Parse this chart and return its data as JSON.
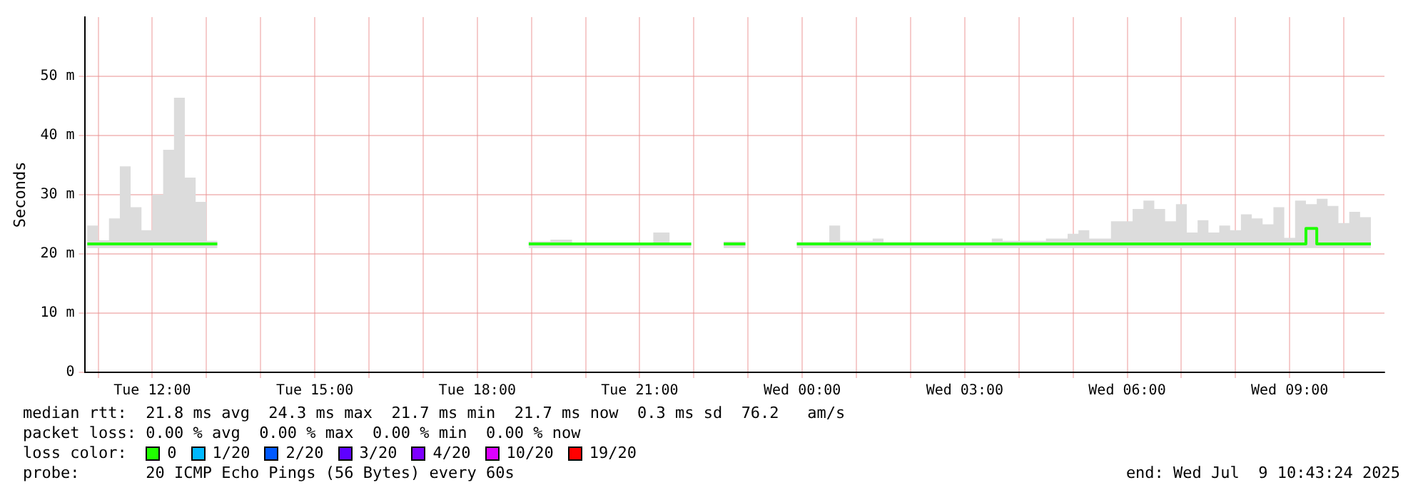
{
  "chart_data": {
    "type": "step",
    "ylabel": "Seconds",
    "legend_title": "loss color:",
    "legend": "bottom",
    "grid": true,
    "marker": "none",
    "line_style": "solid",
    "xlim": [
      "2025-07-08T10:45",
      "2025-07-09T10:45"
    ],
    "xticks": [
      {
        "value": "2025-07-08T11:00",
        "label": null
      },
      {
        "value": "2025-07-08T12:00",
        "label": "Tue 12:00"
      },
      {
        "value": "2025-07-08T13:00",
        "label": null
      },
      {
        "value": "2025-07-08T14:00",
        "label": null
      },
      {
        "value": "2025-07-08T15:00",
        "label": "Tue 15:00"
      },
      {
        "value": "2025-07-08T16:00",
        "label": null
      },
      {
        "value": "2025-07-08T17:00",
        "label": null
      },
      {
        "value": "2025-07-08T18:00",
        "label": "Tue 18:00"
      },
      {
        "value": "2025-07-08T19:00",
        "label": null
      },
      {
        "value": "2025-07-08T20:00",
        "label": null
      },
      {
        "value": "2025-07-08T21:00",
        "label": "Tue 21:00"
      },
      {
        "value": "2025-07-08T22:00",
        "label": null
      },
      {
        "value": "2025-07-08T23:00",
        "label": null
      },
      {
        "value": "2025-07-09T00:00",
        "label": "Wed 00:00"
      },
      {
        "value": "2025-07-09T01:00",
        "label": null
      },
      {
        "value": "2025-07-09T02:00",
        "label": null
      },
      {
        "value": "2025-07-09T03:00",
        "label": "Wed 03:00"
      },
      {
        "value": "2025-07-09T04:00",
        "label": null
      },
      {
        "value": "2025-07-09T05:00",
        "label": null
      },
      {
        "value": "2025-07-09T06:00",
        "label": "Wed 06:00"
      },
      {
        "value": "2025-07-09T07:00",
        "label": null
      },
      {
        "value": "2025-07-09T08:00",
        "label": null
      },
      {
        "value": "2025-07-09T09:00",
        "label": "Wed 09:00"
      },
      {
        "value": "2025-07-09T10:00",
        "label": null
      }
    ],
    "ylim": [
      0,
      60
    ],
    "yticks": [
      0,
      {
        "value": 10,
        "label": "10 m"
      },
      {
        "value": 20,
        "label": "20 m"
      },
      {
        "value": 30,
        "label": "30 m"
      },
      {
        "value": 40,
        "label": "40 m"
      },
      {
        "value": 50,
        "label": "50 m"
      }
    ],
    "x": [
      "2025-07-08T10:48",
      "2025-07-08T11:00",
      "2025-07-08T11:12",
      "2025-07-08T11:24",
      "2025-07-08T11:36",
      "2025-07-08T11:48",
      "2025-07-08T12:00",
      "2025-07-08T12:12",
      "2025-07-08T12:24",
      "2025-07-08T12:36",
      "2025-07-08T12:48",
      "2025-07-08T13:00",
      "2025-07-08T13:12",
      "2025-07-08T13:18",
      "2025-07-08T18:57",
      "2025-07-08T19:21",
      "2025-07-08T19:45",
      "2025-07-08T21:15",
      "2025-07-08T21:33",
      "2025-07-08T21:57",
      "2025-07-08T22:12",
      "2025-07-08T22:33",
      "2025-07-08T22:57",
      "2025-07-08T23:18",
      "2025-07-08T23:54",
      "2025-07-09T00:30",
      "2025-07-09T00:42",
      "2025-07-09T01:18",
      "2025-07-09T01:30",
      "2025-07-09T03:30",
      "2025-07-09T03:42",
      "2025-07-09T04:30",
      "2025-07-09T04:42",
      "2025-07-09T04:54",
      "2025-07-09T05:06",
      "2025-07-09T05:18",
      "2025-07-09T05:30",
      "2025-07-09T05:42",
      "2025-07-09T05:54",
      "2025-07-09T06:06",
      "2025-07-09T06:18",
      "2025-07-09T06:30",
      "2025-07-09T06:42",
      "2025-07-09T06:54",
      "2025-07-09T07:06",
      "2025-07-09T07:18",
      "2025-07-09T07:30",
      "2025-07-09T07:42",
      "2025-07-09T07:54",
      "2025-07-09T08:06",
      "2025-07-09T08:18",
      "2025-07-09T08:30",
      "2025-07-09T08:42",
      "2025-07-09T08:54",
      "2025-07-09T09:06",
      "2025-07-09T09:18",
      "2025-07-09T09:30",
      "2025-07-09T09:42",
      "2025-07-09T09:54",
      "2025-07-09T10:06",
      "2025-07-09T10:18",
      "2025-07-09T10:30"
    ],
    "series": [
      {
        "name": "0",
        "color": "#20ff00",
        "values": [
          21.7,
          21.7,
          21.7,
          21.7,
          21.7,
          21.7,
          21.7,
          21.7,
          21.7,
          21.7,
          21.7,
          21.7,
          21.7,
          null,
          21.7,
          21.7,
          21.7,
          21.7,
          21.7,
          21.7,
          null,
          21.7,
          21.7,
          null,
          21.7,
          21.7,
          21.7,
          21.7,
          21.7,
          21.7,
          21.7,
          21.7,
          21.7,
          21.7,
          21.7,
          21.7,
          21.7,
          21.7,
          21.7,
          21.7,
          21.7,
          21.7,
          21.7,
          21.7,
          21.7,
          21.7,
          21.7,
          21.7,
          21.7,
          21.7,
          21.7,
          21.7,
          21.7,
          21.7,
          21.7,
          21.7,
          24.3,
          21.7,
          21.7,
          21.7,
          21.7,
          21.7
        ],
        "lower": [
          21.0,
          21.0,
          21.0,
          21.0,
          21.0,
          21.0,
          21.0,
          21.0,
          21.0,
          21.0,
          21.0,
          21.0,
          21.0,
          null,
          21.0,
          21.0,
          21.0,
          21.0,
          21.0,
          21.0,
          null,
          21.0,
          21.0,
          null,
          21.0,
          21.0,
          21.0,
          21.0,
          21.0,
          21.0,
          21.0,
          21.0,
          21.0,
          21.0,
          21.0,
          21.0,
          21.0,
          21.0,
          21.0,
          21.0,
          21.0,
          21.0,
          21.0,
          21.0,
          21.0,
          21.0,
          21.0,
          21.0,
          21.0,
          21.0,
          21.0,
          21.0,
          21.0,
          21.0,
          21.0,
          21.0,
          21.0,
          21.0,
          21.0,
          21.0,
          21.0,
          21.0
        ],
        "upper": [
          24.8,
          22.3,
          26,
          34.8,
          27.9,
          24,
          30,
          37.6,
          46.4,
          32.9,
          28.8,
          22.2,
          22.2,
          null,
          22.1,
          22.4,
          21.9,
          23.6,
          21.9,
          21.9,
          null,
          22.1,
          22.1,
          null,
          22,
          24.8,
          22.2,
          22.6,
          22,
          22.6,
          22.2,
          22.6,
          22.6,
          23.4,
          24,
          22.6,
          22.6,
          25.5,
          25.5,
          27.6,
          29,
          27.6,
          25.5,
          28.4,
          23.6,
          25.7,
          23.6,
          24.8,
          24,
          26.7,
          26,
          25,
          27.9,
          22.7,
          29,
          28.4,
          29.3,
          28.1,
          25.2,
          27.1,
          26.2,
          26.2
        ]
      },
      {
        "name": "1/20",
        "color": "#00b8ff",
        "values": [
          null,
          null,
          null,
          null,
          null,
          null,
          null,
          null,
          null,
          null,
          null,
          null,
          null,
          null,
          null,
          null,
          null,
          null,
          null,
          null,
          null,
          null,
          null,
          null,
          null,
          null,
          null,
          null,
          null,
          null,
          null,
          null,
          null,
          null,
          null,
          null,
          null,
          null,
          null,
          null,
          null,
          null,
          null,
          null,
          null,
          null,
          null,
          null,
          null,
          null,
          null,
          null,
          null,
          null,
          null,
          null,
          null,
          null,
          null,
          null,
          null,
          null
        ]
      },
      {
        "name": "2/20",
        "color": "#0059ff",
        "values": [
          null,
          null,
          null,
          null,
          null,
          null,
          null,
          null,
          null,
          null,
          null,
          null,
          null,
          null,
          null,
          null,
          null,
          null,
          null,
          null,
          null,
          null,
          null,
          null,
          null,
          null,
          null,
          null,
          null,
          null,
          null,
          null,
          null,
          null,
          null,
          null,
          null,
          null,
          null,
          null,
          null,
          null,
          null,
          null,
          null,
          null,
          null,
          null,
          null,
          null,
          null,
          null,
          null,
          null,
          null,
          null,
          null,
          null,
          null,
          null,
          null,
          null
        ]
      },
      {
        "name": "3/20",
        "color": "#5e00ff",
        "values": [
          null,
          null,
          null,
          null,
          null,
          null,
          null,
          null,
          null,
          null,
          null,
          null,
          null,
          null,
          null,
          null,
          null,
          null,
          null,
          null,
          null,
          null,
          null,
          null,
          null,
          null,
          null,
          null,
          null,
          null,
          null,
          null,
          null,
          null,
          null,
          null,
          null,
          null,
          null,
          null,
          null,
          null,
          null,
          null,
          null,
          null,
          null,
          null,
          null,
          null,
          null,
          null,
          null,
          null,
          null,
          null,
          null,
          null,
          null,
          null,
          null,
          null
        ]
      },
      {
        "name": "4/20",
        "color": "#7e00ff",
        "values": [
          null,
          null,
          null,
          null,
          null,
          null,
          null,
          null,
          null,
          null,
          null,
          null,
          null,
          null,
          null,
          null,
          null,
          null,
          null,
          null,
          null,
          null,
          null,
          null,
          null,
          null,
          null,
          null,
          null,
          null,
          null,
          null,
          null,
          null,
          null,
          null,
          null,
          null,
          null,
          null,
          null,
          null,
          null,
          null,
          null,
          null,
          null,
          null,
          null,
          null,
          null,
          null,
          null,
          null,
          null,
          null,
          null,
          null,
          null,
          null,
          null,
          null
        ]
      },
      {
        "name": "10/20",
        "color": "#dd00ff",
        "values": [
          null,
          null,
          null,
          null,
          null,
          null,
          null,
          null,
          null,
          null,
          null,
          null,
          null,
          null,
          null,
          null,
          null,
          null,
          null,
          null,
          null,
          null,
          null,
          null,
          null,
          null,
          null,
          null,
          null,
          null,
          null,
          null,
          null,
          null,
          null,
          null,
          null,
          null,
          null,
          null,
          null,
          null,
          null,
          null,
          null,
          null,
          null,
          null,
          null,
          null,
          null,
          null,
          null,
          null,
          null,
          null,
          null,
          null,
          null,
          null,
          null,
          null
        ]
      },
      {
        "name": "19/20",
        "color": "#ff0000",
        "values": [
          null,
          null,
          null,
          null,
          null,
          null,
          null,
          null,
          null,
          null,
          null,
          null,
          null,
          null,
          null,
          null,
          null,
          null,
          null,
          null,
          null,
          null,
          null,
          null,
          null,
          null,
          null,
          null,
          null,
          null,
          null,
          null,
          null,
          null,
          null,
          null,
          null,
          null,
          null,
          null,
          null,
          null,
          null,
          null,
          null,
          null,
          null,
          null,
          null,
          null,
          null,
          null,
          null,
          null,
          null,
          null,
          null,
          null,
          null,
          null,
          null,
          null
        ]
      }
    ],
    "annotations": [
      "median rtt:  21.8 ms avg  24.3 ms max  21.7 ms min  21.7 ms now  0.3 ms sd  76.2   am/s",
      "packet loss: 0.00 % avg  0.00 % max  0.00 % min  0.00 % now",
      "probe:       20 ICMP Echo Pings (56 Bytes) every 60s",
      "end: Wed Jul  9 10:43:24 2025"
    ]
  }
}
